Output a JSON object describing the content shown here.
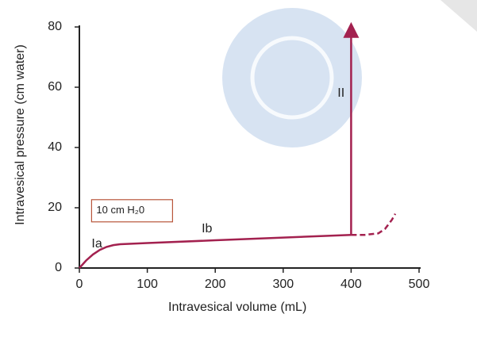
{
  "chart_data": {
    "type": "line",
    "x_label": "Intravesical volume (mL)",
    "y_label": "Intravesical pressure (cm water)",
    "xlim": [
      0,
      500
    ],
    "xticks": [
      0,
      100,
      200,
      300,
      400,
      500
    ],
    "ylim": [
      0,
      80
    ],
    "yticks": [
      0,
      20,
      40,
      60,
      80
    ],
    "color": "#a3214f",
    "series": [
      {
        "style": "solid",
        "x": [
          0,
          10,
          20,
          30,
          40,
          50,
          60,
          70,
          100,
          200,
          300,
          400
        ],
        "values": [
          0,
          2.5,
          4.5,
          6,
          7,
          7.6,
          7.9,
          8,
          8.3,
          9.2,
          10.1,
          11
        ]
      },
      {
        "style": "dashed",
        "x": [
          400,
          420,
          440,
          450,
          460,
          465
        ],
        "values": [
          11,
          11,
          11.5,
          13,
          16,
          18
        ]
      },
      {
        "style": "arrow",
        "x": [
          400,
          400
        ],
        "values": [
          11,
          79
        ]
      }
    ],
    "annotations": [
      {
        "text": "Ia",
        "x": 18,
        "y": 8
      },
      {
        "text": "Ib",
        "x": 180,
        "y": 13
      },
      {
        "text": "II",
        "x": 380,
        "y": 58
      }
    ],
    "box_label": {
      "text": "10 cm H₂0",
      "x": 25,
      "y": 19
    }
  }
}
